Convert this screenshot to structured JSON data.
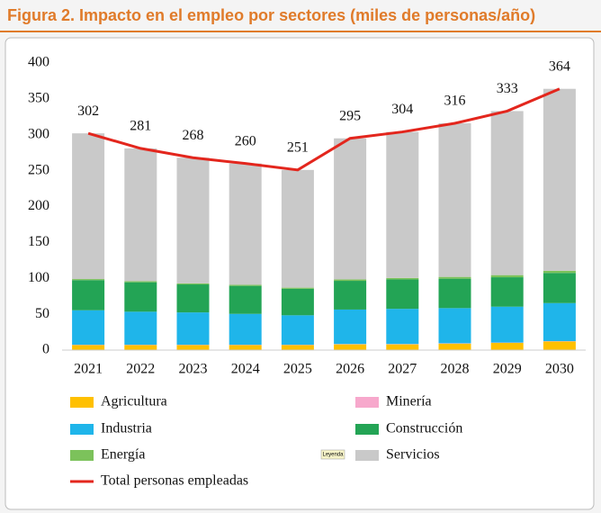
{
  "chart_data": {
    "type": "stacked_bar_line",
    "title": "Figura 2. Impacto en el empleo por sectores (miles de personas/año)",
    "categories": [
      "2021",
      "2022",
      "2023",
      "2024",
      "2025",
      "2026",
      "2027",
      "2028",
      "2029",
      "2030"
    ],
    "series": [
      {
        "name": "Agricultura",
        "color": "#ffc000",
        "values": [
          7,
          7,
          7,
          7,
          7,
          8,
          8,
          9,
          10,
          12
        ]
      },
      {
        "name": "Minería",
        "color": "#f7a8cc",
        "values": [
          0.5,
          0.5,
          0.5,
          0.5,
          0.5,
          0.5,
          0.5,
          0.5,
          0.5,
          0.5
        ]
      },
      {
        "name": "Industria",
        "color": "#1fb5ea",
        "values": [
          48,
          46,
          45,
          43,
          41,
          48,
          49,
          49,
          50,
          53
        ]
      },
      {
        "name": "Construcción",
        "color": "#23a455",
        "values": [
          42,
          41,
          39,
          39,
          37,
          40,
          41,
          41,
          41,
          42
        ]
      },
      {
        "name": "Energía",
        "color": "#7cc25b",
        "values": [
          1.5,
          1.5,
          1.5,
          1.5,
          1.5,
          2,
          2,
          2.5,
          3,
          3
        ]
      },
      {
        "name": "Servicios",
        "color": "#c9c9c9",
        "values": [
          203,
          185,
          175,
          169,
          164,
          196.5,
          203.5,
          214,
          228.5,
          253.5
        ]
      }
    ],
    "line": {
      "name": "Total personas empleadas",
      "color": "#e3261d",
      "values": [
        302,
        281,
        268,
        260,
        251,
        295,
        304,
        316,
        333,
        364
      ]
    },
    "legend_badge": "Leyenda",
    "ylim": [
      0,
      400
    ],
    "yticks": [
      0,
      50,
      100,
      150,
      200,
      250,
      300,
      350,
      400
    ],
    "grid": false
  }
}
